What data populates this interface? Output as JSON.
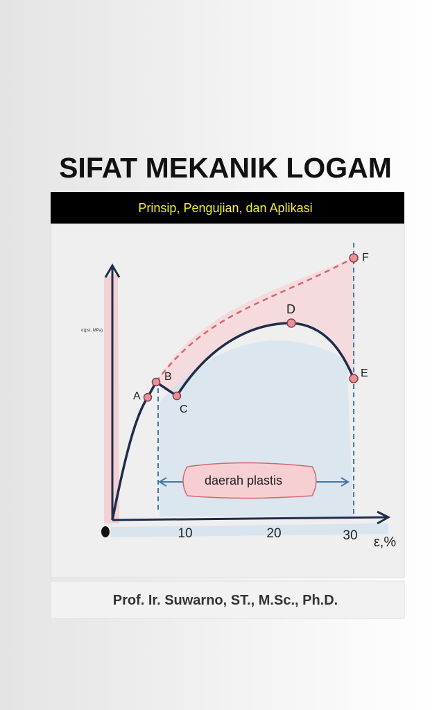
{
  "cover": {
    "title": "SIFAT MEKANIK LOGAM",
    "subtitle": "Prinsip, Pengujian, dan Aplikasi",
    "author": "Prof. Ir. Suwarno, ST., M.Sc., Ph.D.",
    "illustration": {
      "y_axis_label": "σ(psi, MPa)",
      "x_axis_label": "ε,%",
      "x_ticks": [
        "10",
        "20",
        "30"
      ],
      "points": [
        "A",
        "B",
        "C",
        "D",
        "E",
        "F"
      ],
      "region_label": "daerah plastis"
    }
  }
}
